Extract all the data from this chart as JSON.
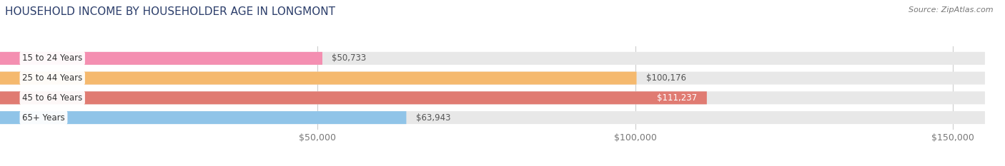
{
  "title": "HOUSEHOLD INCOME BY HOUSEHOLDER AGE IN LONGMONT",
  "source": "Source: ZipAtlas.com",
  "categories": [
    "15 to 24 Years",
    "25 to 44 Years",
    "45 to 64 Years",
    "65+ Years"
  ],
  "values": [
    50733,
    100176,
    111237,
    63943
  ],
  "bar_colors": [
    "#f48fb1",
    "#f5b96e",
    "#e07b72",
    "#90c4e8"
  ],
  "label_colors": [
    "#555555",
    "#555555",
    "#ffffff",
    "#555555"
  ],
  "xlim": [
    0,
    155000
  ],
  "xtick_vals": [
    50000,
    100000,
    150000
  ],
  "xtick_labels": [
    "$50,000",
    "$100,000",
    "$150,000"
  ],
  "bg_color": "#ffffff",
  "bar_bg_color": "#e8e8e8",
  "title_fontsize": 11,
  "tick_fontsize": 9,
  "label_fontsize": 8.5,
  "value_fontsize": 8.5,
  "bar_height": 0.65,
  "figsize": [
    14.06,
    2.33
  ]
}
